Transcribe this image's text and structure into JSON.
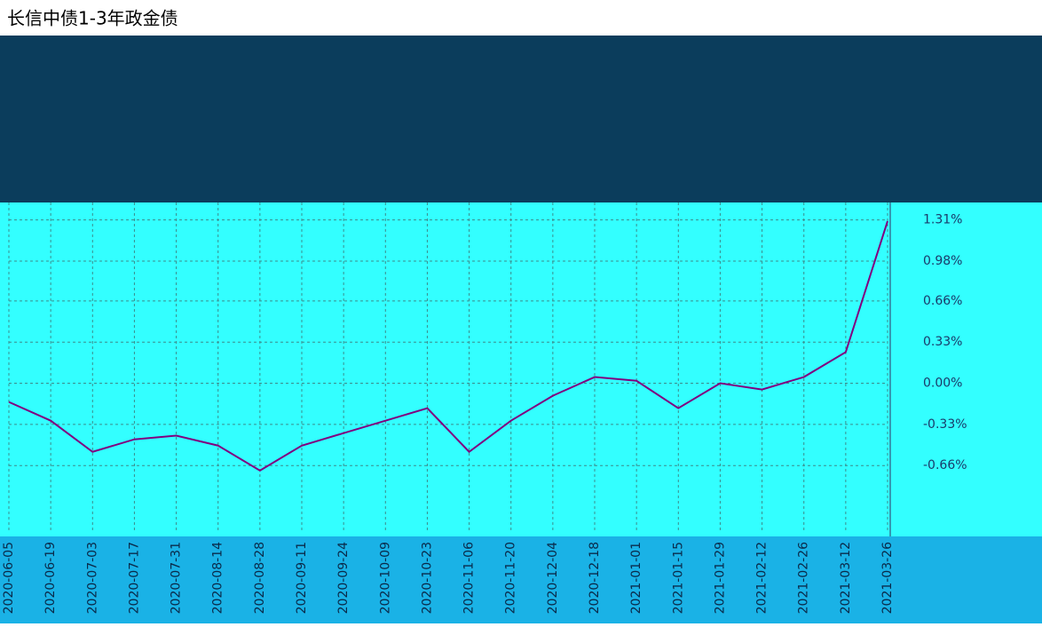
{
  "chart_data": {
    "type": "line",
    "title": "长信中债1-3年政金债",
    "categories": [
      "2020-06-05",
      "2020-06-19",
      "2020-07-03",
      "2020-07-17",
      "2020-07-31",
      "2020-08-14",
      "2020-08-28",
      "2020-09-11",
      "2020-09-24",
      "2020-10-09",
      "2020-10-23",
      "2020-11-06",
      "2020-11-20",
      "2020-12-04",
      "2020-12-18",
      "2021-01-01",
      "2021-01-15",
      "2021-01-29",
      "2021-02-12",
      "2021-02-26",
      "2021-03-12",
      "2021-03-26"
    ],
    "series": [
      {
        "name": "长信中债1-3年政金债",
        "color": "#800080",
        "values": [
          -0.15,
          -0.3,
          -0.55,
          -0.45,
          -0.42,
          -0.5,
          -0.7,
          -0.5,
          -0.4,
          -0.3,
          -0.2,
          -0.55,
          -0.3,
          -0.1,
          0.05,
          0.02,
          -0.2,
          0.0,
          -0.05,
          0.05,
          0.25,
          1.3
        ]
      }
    ],
    "ylim": [
      -1.2,
      1.45
    ],
    "yticks": [
      {
        "value": -0.66,
        "label": "-0.66%"
      },
      {
        "value": -0.33,
        "label": "-0.33%"
      },
      {
        "value": 0,
        "label": "0.00%"
      },
      {
        "value": 0.33,
        "label": "0.33%"
      },
      {
        "value": 0.66,
        "label": "0.66%"
      },
      {
        "value": 0.98,
        "label": "0.98%"
      },
      {
        "value": 1.31,
        "label": "1.31%"
      }
    ],
    "grid": true
  }
}
